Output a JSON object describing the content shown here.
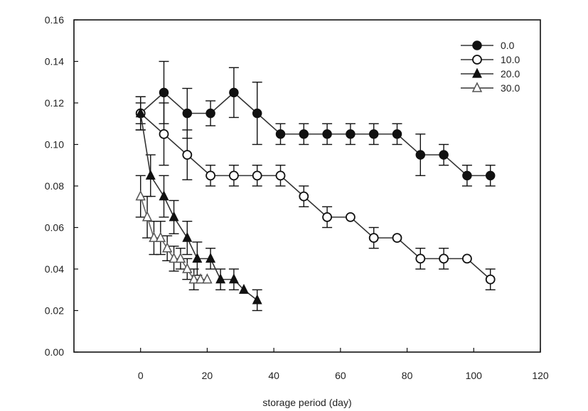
{
  "chart_data": {
    "type": "line",
    "xlabel": "storage period (day)",
    "ylabel": "",
    "xlim": [
      -20,
      120
    ],
    "ylim": [
      0.0,
      0.16
    ],
    "x_ticks": [
      "0",
      "20",
      "40",
      "60",
      "80",
      "100",
      "120"
    ],
    "y_ticks": [
      "0.00",
      "0.02",
      "0.04",
      "0.06",
      "0.08",
      "0.10",
      "0.12",
      "0.14",
      "0.16"
    ],
    "legend_position": "top-right",
    "grid": false,
    "series": [
      {
        "name": "0.0",
        "marker": "filled-circle",
        "x": [
          0,
          7,
          14,
          21,
          28,
          35,
          42,
          49,
          56,
          63,
          70,
          77,
          84,
          91,
          98,
          105
        ],
        "y": [
          0.115,
          0.125,
          0.115,
          0.115,
          0.125,
          0.115,
          0.105,
          0.105,
          0.105,
          0.105,
          0.105,
          0.105,
          0.095,
          0.095,
          0.085,
          0.085
        ],
        "err": [
          0.008,
          0.015,
          0.012,
          0.006,
          0.012,
          0.015,
          0.005,
          0.005,
          0.005,
          0.005,
          0.005,
          0.005,
          0.01,
          0.005,
          0.005,
          0.005
        ]
      },
      {
        "name": "10.0",
        "marker": "open-circle",
        "x": [
          0,
          7,
          14,
          21,
          28,
          35,
          42,
          49,
          56,
          63,
          70,
          77,
          84,
          91,
          98,
          105
        ],
        "y": [
          0.115,
          0.105,
          0.095,
          0.085,
          0.085,
          0.085,
          0.085,
          0.075,
          0.065,
          0.065,
          0.055,
          0.055,
          0.045,
          0.045,
          0.045,
          0.035
        ],
        "err": [
          0.005,
          0.015,
          0.012,
          0.005,
          0.005,
          0.005,
          0.005,
          0.005,
          0.005,
          0.0,
          0.005,
          0.0,
          0.005,
          0.005,
          0.0,
          0.005
        ]
      },
      {
        "name": "20.0",
        "marker": "filled-triangle",
        "x": [
          0,
          3,
          7,
          10,
          14,
          17,
          21,
          24,
          28,
          31,
          35
        ],
        "y": [
          0.115,
          0.085,
          0.075,
          0.065,
          0.055,
          0.045,
          0.045,
          0.035,
          0.035,
          0.03,
          0.025
        ],
        "err": [
          0.008,
          0.01,
          0.01,
          0.008,
          0.008,
          0.008,
          0.005,
          0.005,
          0.005,
          0.0,
          0.005
        ]
      },
      {
        "name": "30.0",
        "marker": "open-triangle",
        "x": [
          0,
          2,
          4,
          6,
          8,
          10,
          12,
          14,
          16,
          18,
          20
        ],
        "y": [
          0.075,
          0.065,
          0.055,
          0.055,
          0.05,
          0.045,
          0.045,
          0.04,
          0.035,
          0.035,
          0.035
        ],
        "err": [
          0.01,
          0.01,
          0.008,
          0.008,
          0.006,
          0.006,
          0.005,
          0.005,
          0.005,
          0.0,
          0.0
        ]
      }
    ]
  }
}
